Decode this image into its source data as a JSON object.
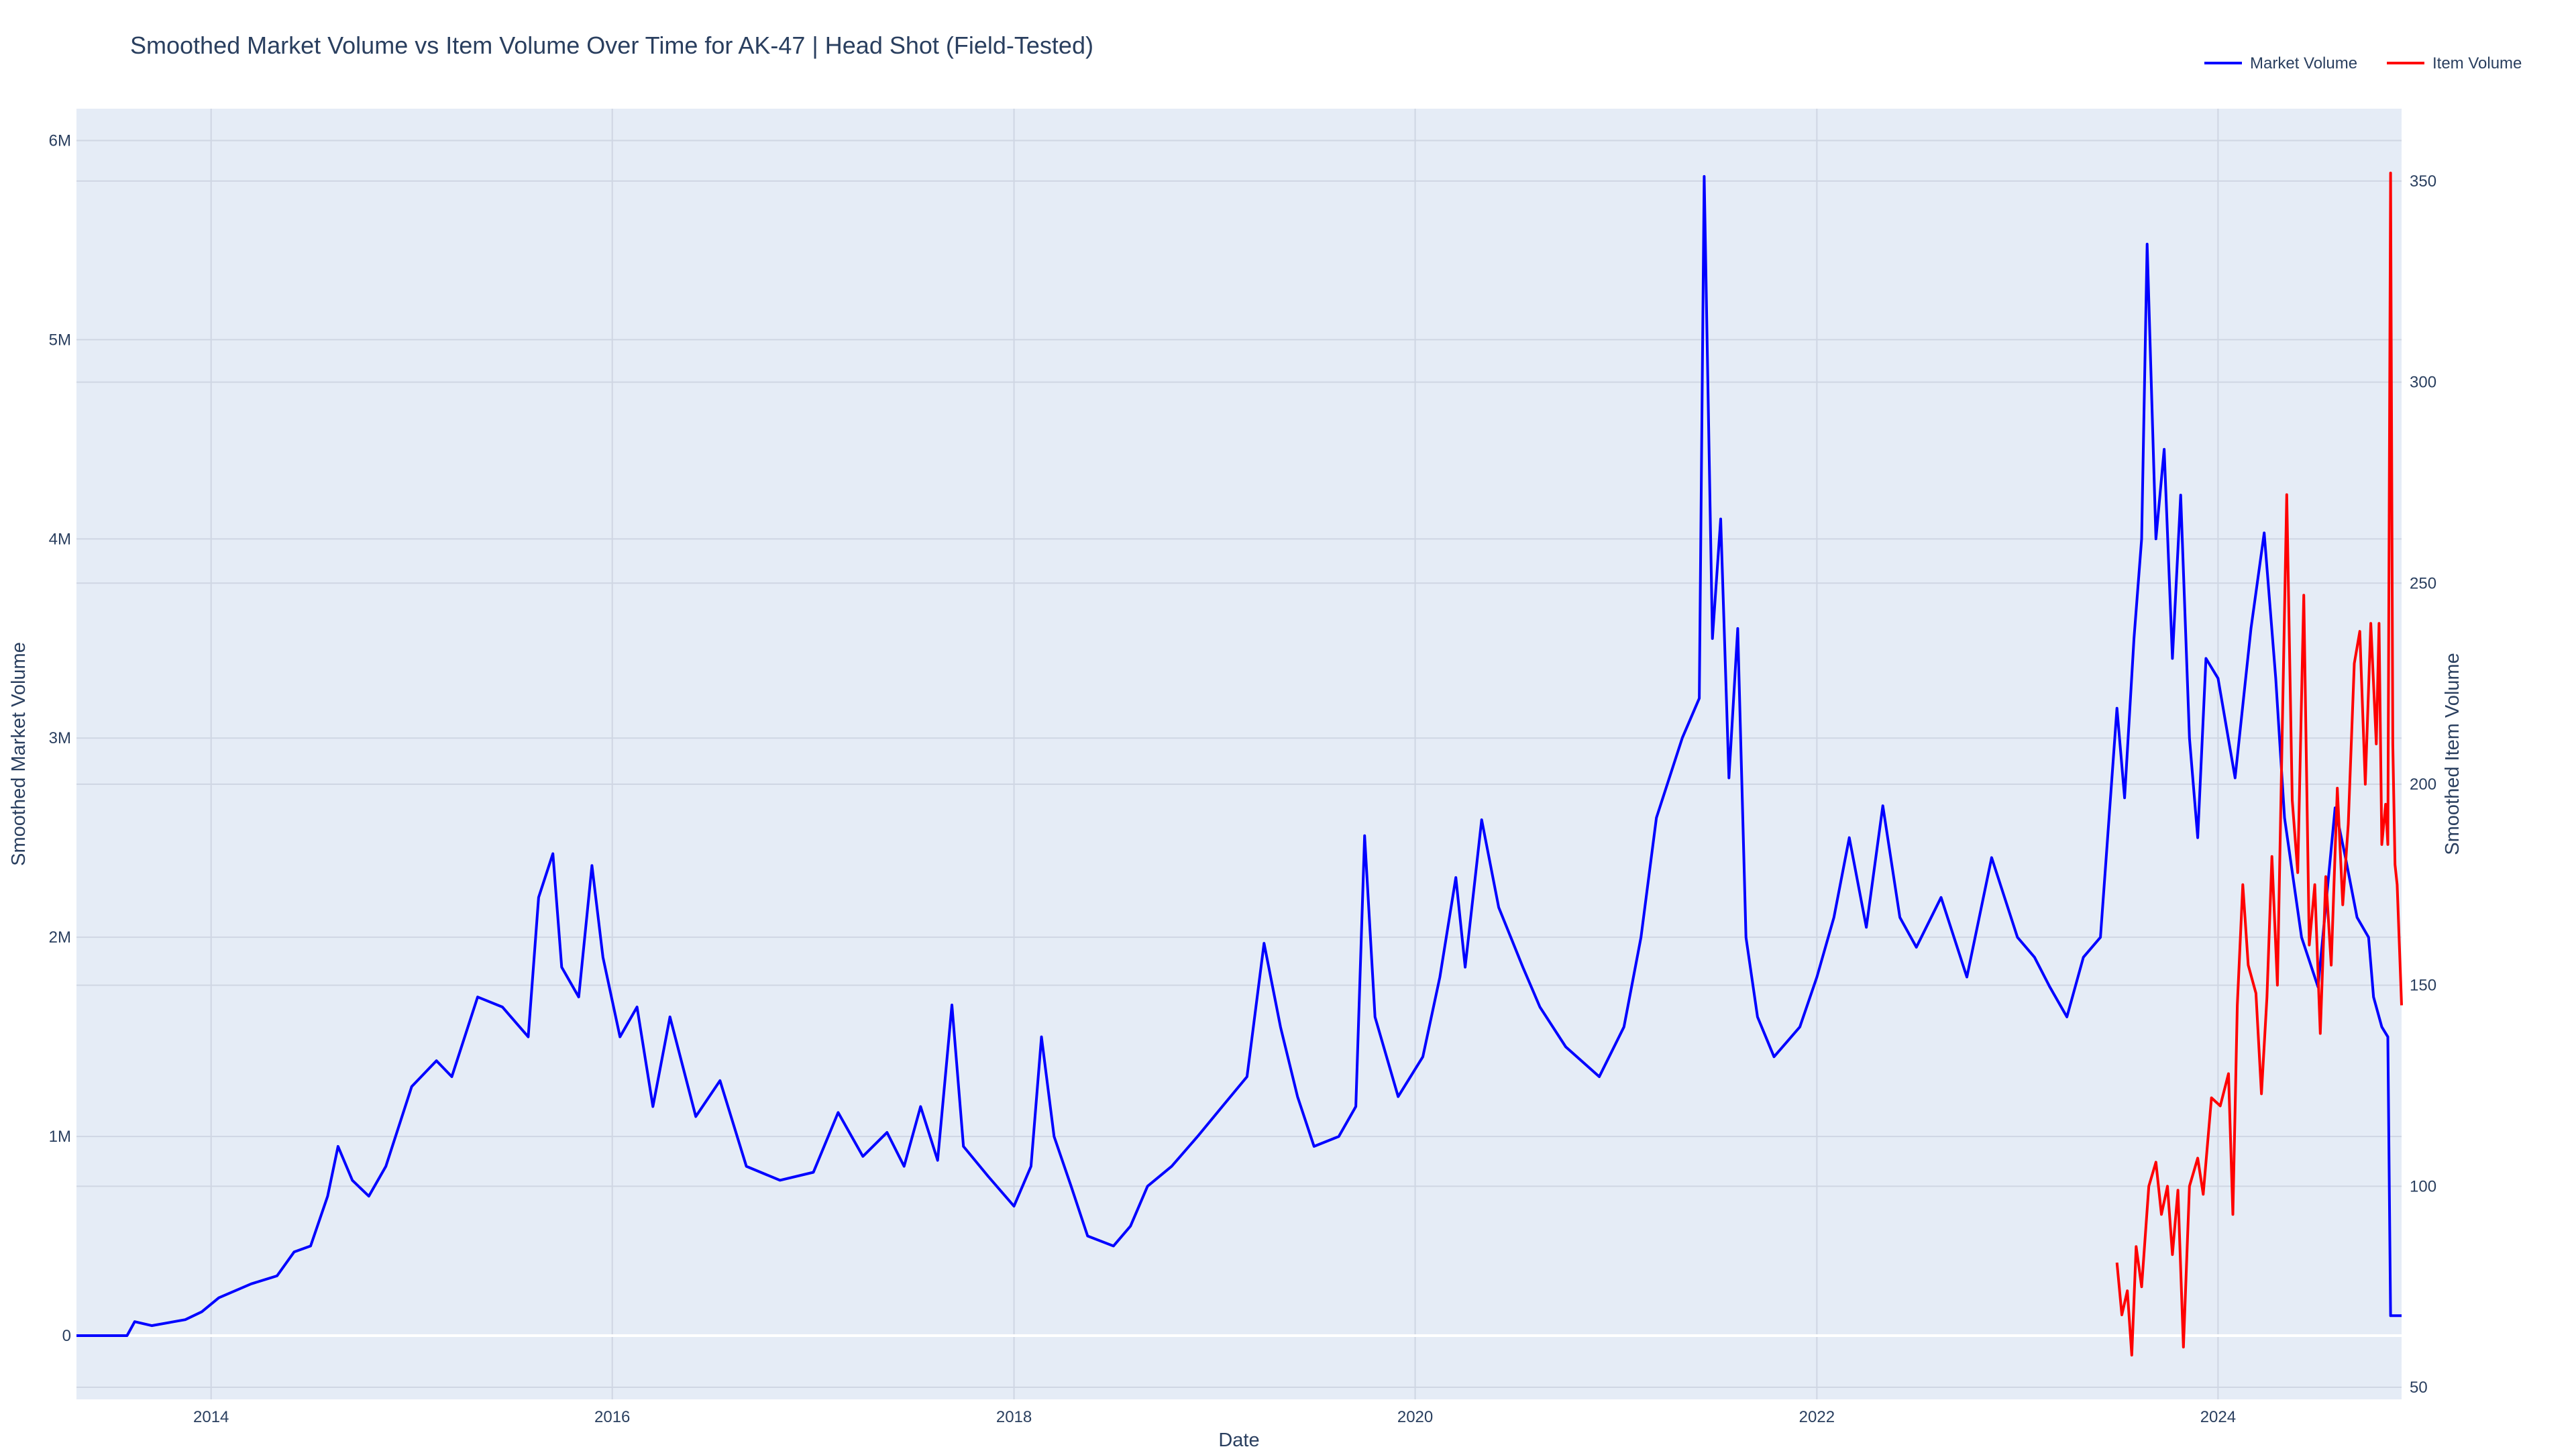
{
  "chart_data": {
    "type": "line",
    "title": "Smoothed Market Volume vs Item Volume Over Time for AK-47 | Head Shot (Field-Tested)",
    "xlabel": "Date",
    "ylabel": "Smoothed Market Volume",
    "y2label": "Smoothed Item Volume",
    "x_tick_labels": [
      "2014",
      "2016",
      "2018",
      "2020",
      "2022",
      "2024"
    ],
    "y_tick_labels": [
      "0",
      "1M",
      "2M",
      "3M",
      "4M",
      "5M",
      "6M"
    ],
    "y2_tick_labels": [
      "50",
      "100",
      "150",
      "200",
      "250",
      "300",
      "350"
    ],
    "xlim": [
      "2013-05-01",
      "2024-11-30"
    ],
    "ylim": [
      -320000,
      6160000
    ],
    "y2lim": [
      47,
      368
    ],
    "grid": true,
    "legend_position": "top-right",
    "colors": {
      "plot_bg": "#e5ecf6",
      "grid": "#cfd6e3",
      "text": "#2a3f5f",
      "market": "#0000ff",
      "item": "#ff0000"
    },
    "series": [
      {
        "name": "Market Volume",
        "axis": "left",
        "color": "#0000ff",
        "points": [
          [
            "2013-05-01",
            0
          ],
          [
            "2013-08-01",
            0
          ],
          [
            "2013-08-15",
            70000
          ],
          [
            "2013-09-15",
            50000
          ],
          [
            "2013-11-15",
            80000
          ],
          [
            "2013-12-15",
            120000
          ],
          [
            "2014-01-15",
            190000
          ],
          [
            "2014-03-15",
            260000
          ],
          [
            "2014-05-01",
            300000
          ],
          [
            "2014-06-01",
            420000
          ],
          [
            "2014-07-01",
            450000
          ],
          [
            "2014-08-01",
            700000
          ],
          [
            "2014-08-20",
            950000
          ],
          [
            "2014-09-15",
            780000
          ],
          [
            "2014-10-15",
            700000
          ],
          [
            "2014-11-15",
            850000
          ],
          [
            "2015-01-01",
            1250000
          ],
          [
            "2015-02-15",
            1380000
          ],
          [
            "2015-03-15",
            1300000
          ],
          [
            "2015-05-01",
            1700000
          ],
          [
            "2015-06-15",
            1650000
          ],
          [
            "2015-08-01",
            1500000
          ],
          [
            "2015-08-20",
            2200000
          ],
          [
            "2015-09-15",
            2420000
          ],
          [
            "2015-10-01",
            1850000
          ],
          [
            "2015-11-01",
            1700000
          ],
          [
            "2015-11-25",
            2360000
          ],
          [
            "2015-12-15",
            1900000
          ],
          [
            "2016-01-15",
            1500000
          ],
          [
            "2016-02-15",
            1650000
          ],
          [
            "2016-03-15",
            1150000
          ],
          [
            "2016-04-15",
            1600000
          ],
          [
            "2016-06-01",
            1100000
          ],
          [
            "2016-07-15",
            1280000
          ],
          [
            "2016-09-01",
            850000
          ],
          [
            "2016-11-01",
            780000
          ],
          [
            "2017-01-01",
            820000
          ],
          [
            "2017-02-15",
            1120000
          ],
          [
            "2017-04-01",
            900000
          ],
          [
            "2017-05-15",
            1020000
          ],
          [
            "2017-06-15",
            850000
          ],
          [
            "2017-07-15",
            1150000
          ],
          [
            "2017-08-15",
            880000
          ],
          [
            "2017-09-10",
            1660000
          ],
          [
            "2017-10-01",
            950000
          ],
          [
            "2017-11-15",
            800000
          ],
          [
            "2018-01-01",
            650000
          ],
          [
            "2018-02-01",
            850000
          ],
          [
            "2018-02-20",
            1500000
          ],
          [
            "2018-03-15",
            1000000
          ],
          [
            "2018-04-15",
            750000
          ],
          [
            "2018-05-15",
            500000
          ],
          [
            "2018-07-01",
            450000
          ],
          [
            "2018-08-01",
            550000
          ],
          [
            "2018-09-01",
            750000
          ],
          [
            "2018-10-15",
            850000
          ],
          [
            "2018-12-01",
            1000000
          ],
          [
            "2019-01-15",
            1150000
          ],
          [
            "2019-03-01",
            1300000
          ],
          [
            "2019-04-01",
            1970000
          ],
          [
            "2019-05-01",
            1550000
          ],
          [
            "2019-06-01",
            1200000
          ],
          [
            "2019-07-01",
            950000
          ],
          [
            "2019-08-15",
            1000000
          ],
          [
            "2019-09-15",
            1150000
          ],
          [
            "2019-10-01",
            2510000
          ],
          [
            "2019-10-20",
            1600000
          ],
          [
            "2019-12-01",
            1200000
          ],
          [
            "2020-01-15",
            1400000
          ],
          [
            "2020-02-15",
            1800000
          ],
          [
            "2020-03-15",
            2300000
          ],
          [
            "2020-04-01",
            1850000
          ],
          [
            "2020-05-01",
            2590000
          ],
          [
            "2020-06-01",
            2150000
          ],
          [
            "2020-07-15",
            1850000
          ],
          [
            "2020-08-15",
            1650000
          ],
          [
            "2020-10-01",
            1450000
          ],
          [
            "2020-12-01",
            1300000
          ],
          [
            "2021-01-15",
            1550000
          ],
          [
            "2021-02-15",
            2000000
          ],
          [
            "2021-03-15",
            2600000
          ],
          [
            "2021-05-01",
            3000000
          ],
          [
            "2021-06-01",
            3200000
          ],
          [
            "2021-06-10",
            5820000
          ],
          [
            "2021-06-25",
            3500000
          ],
          [
            "2021-07-10",
            4100000
          ],
          [
            "2021-07-25",
            2800000
          ],
          [
            "2021-08-10",
            3550000
          ],
          [
            "2021-08-25",
            2000000
          ],
          [
            "2021-09-15",
            1600000
          ],
          [
            "2021-10-15",
            1400000
          ],
          [
            "2021-12-01",
            1550000
          ],
          [
            "2022-01-01",
            1800000
          ],
          [
            "2022-02-01",
            2100000
          ],
          [
            "2022-03-01",
            2500000
          ],
          [
            "2022-04-01",
            2050000
          ],
          [
            "2022-05-01",
            2660000
          ],
          [
            "2022-06-01",
            2100000
          ],
          [
            "2022-07-01",
            1950000
          ],
          [
            "2022-08-15",
            2200000
          ],
          [
            "2022-10-01",
            1800000
          ],
          [
            "2022-11-15",
            2400000
          ],
          [
            "2023-01-01",
            2000000
          ],
          [
            "2023-02-01",
            1900000
          ],
          [
            "2023-03-01",
            1750000
          ],
          [
            "2023-04-01",
            1600000
          ],
          [
            "2023-05-01",
            1900000
          ],
          [
            "2023-06-01",
            2000000
          ],
          [
            "2023-07-01",
            3150000
          ],
          [
            "2023-07-15",
            2700000
          ],
          [
            "2023-08-01",
            3500000
          ],
          [
            "2023-08-15",
            4000000
          ],
          [
            "2023-08-25",
            5480000
          ],
          [
            "2023-09-10",
            4000000
          ],
          [
            "2023-09-25",
            4450000
          ],
          [
            "2023-10-10",
            3400000
          ],
          [
            "2023-10-25",
            4220000
          ],
          [
            "2023-11-10",
            3000000
          ],
          [
            "2023-11-25",
            2500000
          ],
          [
            "2023-12-10",
            3400000
          ],
          [
            "2024-01-01",
            3300000
          ],
          [
            "2024-02-01",
            2800000
          ],
          [
            "2024-03-01",
            3550000
          ],
          [
            "2024-03-25",
            4030000
          ],
          [
            "2024-04-15",
            3300000
          ],
          [
            "2024-05-01",
            2600000
          ],
          [
            "2024-06-01",
            2000000
          ],
          [
            "2024-07-01",
            1750000
          ],
          [
            "2024-08-01",
            2650000
          ],
          [
            "2024-08-20",
            2400000
          ],
          [
            "2024-09-10",
            2100000
          ],
          [
            "2024-10-01",
            2000000
          ],
          [
            "2024-10-10",
            1700000
          ],
          [
            "2024-10-25",
            1550000
          ],
          [
            "2024-11-05",
            1500000
          ],
          [
            "2024-11-10",
            100000
          ],
          [
            "2024-11-30",
            100000
          ]
        ]
      },
      {
        "name": "Item Volume",
        "axis": "right",
        "color": "#ff0000",
        "points": [
          [
            "2023-07-01",
            81
          ],
          [
            "2023-07-10",
            68
          ],
          [
            "2023-07-20",
            74
          ],
          [
            "2023-07-28",
            58
          ],
          [
            "2023-08-05",
            85
          ],
          [
            "2023-08-15",
            75
          ],
          [
            "2023-08-28",
            100
          ],
          [
            "2023-09-10",
            106
          ],
          [
            "2023-09-20",
            93
          ],
          [
            "2023-10-01",
            100
          ],
          [
            "2023-10-10",
            83
          ],
          [
            "2023-10-20",
            99
          ],
          [
            "2023-10-30",
            60
          ],
          [
            "2023-11-10",
            100
          ],
          [
            "2023-11-25",
            107
          ],
          [
            "2023-12-05",
            98
          ],
          [
            "2023-12-20",
            122
          ],
          [
            "2024-01-05",
            120
          ],
          [
            "2024-01-20",
            128
          ],
          [
            "2024-01-28",
            93
          ],
          [
            "2024-02-05",
            145
          ],
          [
            "2024-02-15",
            175
          ],
          [
            "2024-02-25",
            155
          ],
          [
            "2024-03-10",
            148
          ],
          [
            "2024-03-20",
            123
          ],
          [
            "2024-03-30",
            147
          ],
          [
            "2024-04-08",
            182
          ],
          [
            "2024-04-18",
            150
          ],
          [
            "2024-04-25",
            200
          ],
          [
            "2024-05-05",
            272
          ],
          [
            "2024-05-15",
            196
          ],
          [
            "2024-05-25",
            178
          ],
          [
            "2024-06-05",
            247
          ],
          [
            "2024-06-15",
            160
          ],
          [
            "2024-06-25",
            175
          ],
          [
            "2024-07-05",
            138
          ],
          [
            "2024-07-15",
            177
          ],
          [
            "2024-07-25",
            155
          ],
          [
            "2024-08-05",
            199
          ],
          [
            "2024-08-15",
            170
          ],
          [
            "2024-08-25",
            190
          ],
          [
            "2024-09-05",
            230
          ],
          [
            "2024-09-15",
            238
          ],
          [
            "2024-09-25",
            200
          ],
          [
            "2024-10-05",
            240
          ],
          [
            "2024-10-15",
            210
          ],
          [
            "2024-10-20",
            240
          ],
          [
            "2024-10-25",
            185
          ],
          [
            "2024-11-01",
            195
          ],
          [
            "2024-11-05",
            185
          ],
          [
            "2024-11-10",
            352
          ],
          [
            "2024-11-14",
            210
          ],
          [
            "2024-11-18",
            180
          ],
          [
            "2024-11-22",
            175
          ],
          [
            "2024-11-26",
            160
          ],
          [
            "2024-11-30",
            145
          ]
        ]
      }
    ]
  }
}
